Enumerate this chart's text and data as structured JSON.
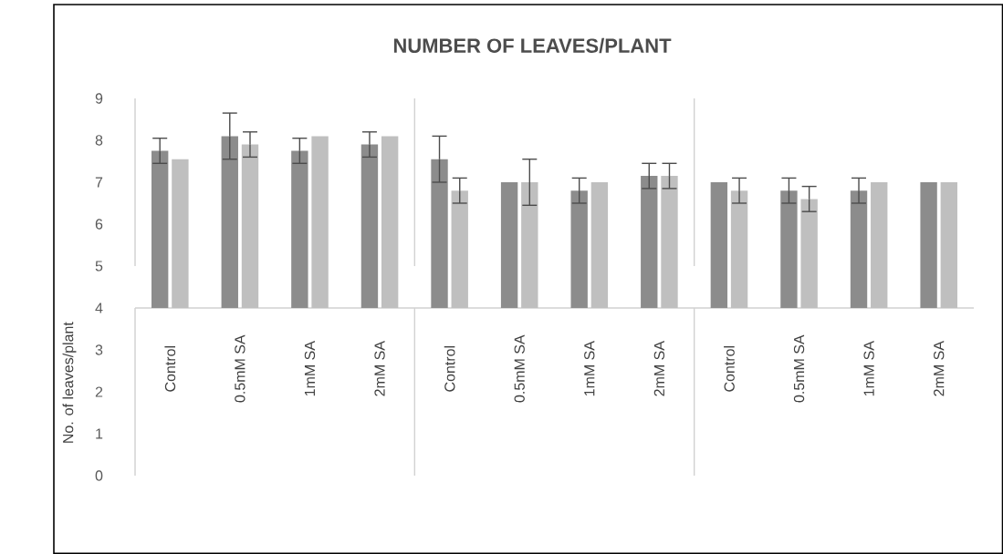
{
  "chart_data": {
    "type": "bar",
    "title": "NUMBER OF LEAVES/PLANT",
    "ylabel": "No. of leaves/plant",
    "categories": [
      "Control",
      "0.5mM SA",
      "1mM SA",
      "2mM SA",
      "Control",
      "0.5mM SA",
      "1mM SA",
      "2mM SA",
      "Control",
      "0.5mM SA",
      "1mM SA",
      "2mM SA"
    ],
    "ylim": [
      0,
      9
    ],
    "yticks": [
      0,
      1,
      2,
      3,
      4,
      5,
      6,
      7,
      8,
      9
    ],
    "series": [
      {
        "color": "#8c8c8c",
        "base": [
          4,
          4,
          4,
          4,
          4,
          4,
          4,
          4,
          4,
          4,
          4,
          4
        ],
        "values": [
          3.75,
          4.1,
          3.75,
          3.9,
          3.55,
          3.0,
          2.8,
          3.15,
          3.0,
          2.8,
          2.8,
          3.0
        ],
        "errors": [
          0.3,
          0.55,
          0.3,
          0.3,
          0.55,
          null,
          0.3,
          0.3,
          null,
          0.3,
          0.3,
          null
        ]
      },
      {
        "color": "#bfbfbf",
        "base": [
          4,
          4,
          4,
          4,
          4,
          4,
          4,
          4,
          4,
          4,
          4,
          4
        ],
        "values": [
          3.55,
          3.9,
          4.1,
          4.1,
          2.8,
          3.0,
          3.0,
          3.15,
          2.8,
          2.6,
          3.0,
          3.0
        ],
        "errors": [
          null,
          0.3,
          null,
          null,
          0.3,
          0.55,
          null,
          0.3,
          0.3,
          0.3,
          null,
          null
        ]
      }
    ]
  }
}
